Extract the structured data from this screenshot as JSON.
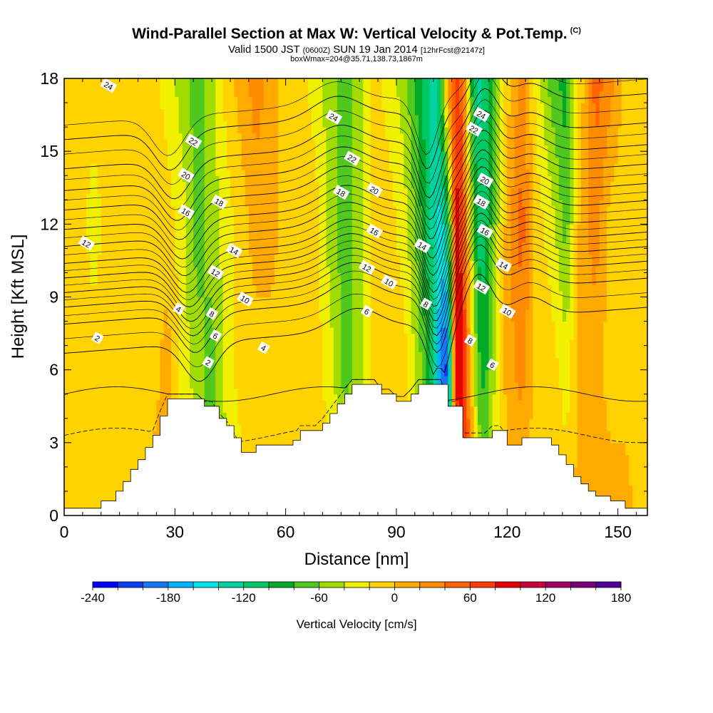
{
  "chart_data": {
    "type": "heatmap",
    "title": "Wind-Parallel Section at Max W: Vertical Velocity & Pot.Temp.",
    "title_mark": "(C)",
    "subtitle_parts": [
      "Valid 1500 JST ",
      "(0600Z)",
      " SUN 19 Jan 2014 ",
      "[12hrFcst@2147z]"
    ],
    "subtitle2": "boxWmax=204@35.71,138.73,1867m",
    "xlabel": "Distance [nm]",
    "ylabel": "Height [Kft MSL]",
    "xlim": [
      0,
      158
    ],
    "ylim": [
      0,
      18
    ],
    "xticks": [
      0,
      30,
      60,
      90,
      120,
      150
    ],
    "yticks": [
      0,
      3,
      6,
      9,
      12,
      15,
      18
    ],
    "grid": false,
    "colorbar": {
      "label": "Vertical Velocity [cm/s]",
      "min": -240,
      "max": 200,
      "step": 20,
      "tick_values": [
        -240,
        -180,
        -120,
        -60,
        0,
        60,
        120,
        180
      ],
      "colors": [
        "#0000ff",
        "#0a3cf0",
        "#1478f5",
        "#00b4ff",
        "#00e6e6",
        "#00d2a0",
        "#00c864",
        "#00aa28",
        "#50c81e",
        "#a0dc00",
        "#f0f000",
        "#ffd200",
        "#ffaa00",
        "#ff8c00",
        "#ff6400",
        "#ff3c00",
        "#e60000",
        "#c8003c",
        "#a00064",
        "#780078",
        "#500096"
      ]
    },
    "vertical_velocity": {
      "base": 10,
      "columns_x": [
        0,
        4,
        8,
        12,
        16,
        20,
        24,
        28,
        32,
        36,
        40,
        44,
        48,
        52,
        56,
        60,
        64,
        68,
        72,
        76,
        80,
        84,
        88,
        92,
        96,
        100,
        102,
        104,
        106,
        108,
        110,
        112,
        114,
        116,
        120,
        124,
        128,
        132,
        136,
        140,
        144,
        148,
        152,
        156,
        158
      ],
      "levels_y": [
        0,
        6,
        12,
        18
      ],
      "bins": [
        [
          11,
          11,
          11,
          11
        ],
        [
          11,
          11,
          11,
          11
        ],
        [
          11,
          11,
          10,
          11
        ],
        [
          11,
          11,
          11,
          11
        ],
        [
          11,
          11,
          11,
          11
        ],
        [
          11,
          11,
          11,
          11
        ],
        [
          12,
          11,
          11,
          11
        ],
        [
          12,
          12,
          11,
          10
        ],
        [
          11,
          10,
          10,
          9
        ],
        [
          10,
          9,
          8,
          8
        ],
        [
          8,
          8,
          9,
          9
        ],
        [
          9,
          10,
          10,
          11
        ],
        [
          10,
          11,
          11,
          12
        ],
        [
          11,
          11,
          12,
          13
        ],
        [
          11,
          11,
          12,
          12
        ],
        [
          11,
          11,
          11,
          11
        ],
        [
          11,
          11,
          11,
          11
        ],
        [
          11,
          11,
          11,
          10
        ],
        [
          11,
          10,
          9,
          9
        ],
        [
          10,
          8,
          8,
          8
        ],
        [
          9,
          9,
          9,
          9
        ],
        [
          10,
          11,
          11,
          11
        ],
        [
          11,
          11,
          11,
          10
        ],
        [
          11,
          11,
          10,
          9
        ],
        [
          10,
          9,
          8,
          7
        ],
        [
          8,
          6,
          5,
          5
        ],
        [
          7,
          2,
          4,
          7
        ],
        [
          6,
          1,
          6,
          13
        ],
        [
          13,
          16,
          16,
          15
        ],
        [
          16,
          16,
          15,
          14
        ],
        [
          14,
          12,
          10,
          8
        ],
        [
          10,
          8,
          6,
          5
        ],
        [
          9,
          7,
          6,
          6
        ],
        [
          10,
          9,
          8,
          7
        ],
        [
          11,
          12,
          12,
          11
        ],
        [
          11,
          13,
          14,
          13
        ],
        [
          11,
          11,
          11,
          10
        ],
        [
          12,
          11,
          10,
          8
        ],
        [
          11,
          10,
          8,
          7
        ],
        [
          12,
          12,
          12,
          11
        ],
        [
          12,
          12,
          13,
          14
        ],
        [
          12,
          11,
          11,
          13
        ],
        [
          12,
          11,
          11,
          11
        ],
        [
          11,
          11,
          11,
          11
        ],
        [
          11,
          11,
          11,
          11
        ]
      ]
    },
    "terrain": {
      "x": [
        0,
        8,
        10,
        12,
        14,
        16,
        18,
        20,
        22,
        24,
        26,
        28,
        30,
        32,
        34,
        36,
        38,
        40,
        42,
        44,
        46,
        48,
        50,
        52,
        54,
        56,
        58,
        60,
        62,
        64,
        66,
        68,
        70,
        72,
        74,
        76,
        78,
        80,
        82,
        84,
        86,
        88,
        90,
        92,
        94,
        96,
        98,
        100,
        102,
        104,
        106,
        108,
        110,
        112,
        114,
        116,
        118,
        120,
        122,
        124,
        126,
        128,
        130,
        132,
        134,
        136,
        138,
        140,
        142,
        144,
        146,
        148,
        150,
        152,
        154,
        156,
        158
      ],
      "height": [
        0.3,
        0.3,
        0.6,
        0.6,
        1.0,
        1.4,
        1.9,
        2.3,
        2.8,
        3.3,
        4.1,
        4.8,
        4.8,
        4.8,
        4.8,
        4.8,
        4.5,
        4.5,
        4.0,
        3.7,
        3.2,
        2.6,
        2.6,
        2.9,
        2.9,
        2.9,
        2.9,
        2.9,
        3.1,
        3.5,
        3.5,
        3.5,
        3.8,
        4.2,
        4.6,
        5.0,
        5.4,
        5.4,
        5.4,
        5.4,
        5.0,
        5.0,
        4.7,
        4.7,
        5.0,
        5.4,
        5.4,
        5.4,
        5.4,
        4.5,
        4.5,
        3.2,
        3.2,
        3.2,
        3.2,
        3.5,
        3.5,
        2.9,
        2.9,
        3.2,
        3.2,
        3.2,
        3.2,
        2.9,
        2.5,
        2.1,
        1.6,
        1.3,
        1.0,
        0.8,
        0.8,
        0.6,
        0.6,
        0.3,
        0.3,
        0.3,
        0.3
      ]
    },
    "pot_temp_contours": {
      "levels": [
        2,
        4,
        6,
        8,
        10,
        12,
        14,
        16,
        18,
        20,
        22,
        24
      ],
      "base_heights": [
        7.4,
        8.6,
        9.3,
        9.9,
        10.5,
        11.1,
        11.8,
        12.5,
        13.3,
        14.1,
        15.0,
        16.2
      ],
      "labels": [
        {
          "text": "24",
          "x": 12,
          "y": 17.7
        },
        {
          "text": "24",
          "x": 73,
          "y": 16.4
        },
        {
          "text": "24",
          "x": 113,
          "y": 16.5
        },
        {
          "text": "22",
          "x": 35,
          "y": 15.4
        },
        {
          "text": "22",
          "x": 78,
          "y": 14.7
        },
        {
          "text": "22",
          "x": 111,
          "y": 15.9
        },
        {
          "text": "20",
          "x": 33,
          "y": 14.0
        },
        {
          "text": "20",
          "x": 84,
          "y": 13.4
        },
        {
          "text": "20",
          "x": 114,
          "y": 13.8
        },
        {
          "text": "18",
          "x": 42,
          "y": 12.9
        },
        {
          "text": "18",
          "x": 75,
          "y": 13.3
        },
        {
          "text": "18",
          "x": 113,
          "y": 12.9
        },
        {
          "text": "16",
          "x": 33,
          "y": 12.5
        },
        {
          "text": "16",
          "x": 84,
          "y": 11.7
        },
        {
          "text": "16",
          "x": 114,
          "y": 11.7
        },
        {
          "text": "14",
          "x": 46,
          "y": 10.9
        },
        {
          "text": "14",
          "x": 97,
          "y": 11.1
        },
        {
          "text": "14",
          "x": 119,
          "y": 10.3
        },
        {
          "text": "12",
          "x": 6,
          "y": 11.2
        },
        {
          "text": "12",
          "x": 41,
          "y": 10.0
        },
        {
          "text": "12",
          "x": 82,
          "y": 10.2
        },
        {
          "text": "12",
          "x": 113,
          "y": 9.4
        },
        {
          "text": "10",
          "x": 49,
          "y": 8.9
        },
        {
          "text": "10",
          "x": 88,
          "y": 9.6
        },
        {
          "text": "10",
          "x": 120,
          "y": 8.4
        },
        {
          "text": "8",
          "x": 40,
          "y": 8.3
        },
        {
          "text": "8",
          "x": 98,
          "y": 8.7
        },
        {
          "text": "8",
          "x": 110,
          "y": 7.2
        },
        {
          "text": "6",
          "x": 41,
          "y": 7.4
        },
        {
          "text": "6",
          "x": 82,
          "y": 8.4
        },
        {
          "text": "6",
          "x": 116,
          "y": 6.2
        },
        {
          "text": "4",
          "x": 31,
          "y": 8.5
        },
        {
          "text": "4",
          "x": 54,
          "y": 6.9
        },
        {
          "text": "2",
          "x": 9,
          "y": 7.3
        },
        {
          "text": "2",
          "x": 39,
          "y": 6.3
        }
      ]
    }
  }
}
